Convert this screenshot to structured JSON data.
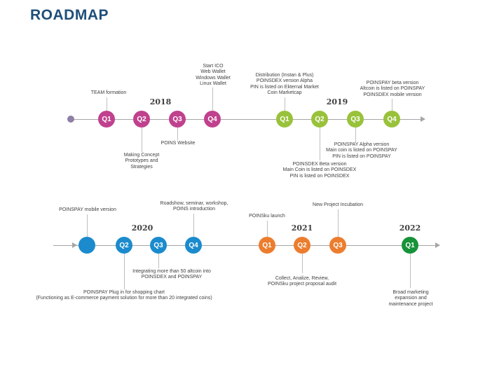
{
  "title": "ROADMAP",
  "colors": {
    "purple": "#c0418e",
    "green": "#99c23b",
    "blue": "#1b8bcd",
    "orange": "#ec7d2e",
    "dark_green": "#169239",
    "axis": "#a6a6a6",
    "title": "#1f4e79"
  },
  "years": [
    "2018",
    "2019",
    "2020",
    "2021",
    "2022"
  ],
  "row1": {
    "nodes": [
      "Q1",
      "Q2",
      "Q3",
      "Q4",
      "Q1",
      "Q2",
      "Q3",
      "Q4"
    ],
    "annotations": [
      {
        "lines": [
          "TEAM formation"
        ]
      },
      {
        "lines": [
          "Making Concept",
          "Prototypes and",
          "Strategies"
        ]
      },
      {
        "lines": [
          "POINS Website"
        ]
      },
      {
        "lines": [
          "Start ICO",
          "Web Wallet",
          "Windows Wallet",
          "Linux Wallet"
        ]
      },
      {
        "lines": [
          "Distribution (Instan & Plus)",
          "POINSDEX version Alpha",
          "PIN is listed on Ekternal Market",
          "Coin Marketcap"
        ]
      },
      {
        "lines": [
          "POINSDEX Beta version",
          "Main Coin is listed on POINSDEX",
          "PIN is listed on POINSDEX"
        ]
      },
      {
        "lines": [
          "POINSPAY Alpha version",
          "Main coin is listed on POINSPAY",
          "PIN is listed on POINSPAY"
        ]
      },
      {
        "lines": [
          "POINSPAY beta version",
          "Altcoin is listed on POINSPAY",
          "POINSDEX mobile version"
        ]
      }
    ]
  },
  "row2": {
    "nodes": [
      "",
      "Q2",
      "Q3",
      "Q4",
      "Q1",
      "Q2",
      "Q3",
      "Q1"
    ],
    "annotations": [
      {
        "lines": [
          "POINSPAY mobile version"
        ]
      },
      {
        "lines": [
          "POINSPAY Plug in for shopping chart",
          "(Functioning as E-commerce payment solution for more than 20 integrated coins)"
        ]
      },
      {
        "lines": [
          "Integrating more than 50 altcoin into",
          "POINSDEX and POINSPAY"
        ]
      },
      {
        "lines": [
          "Roadshow, seminar, workshop,",
          "POINS introduction"
        ]
      },
      {
        "lines": [
          "POINSku launch"
        ]
      },
      {
        "lines": [
          "Collect, Analize, Review,",
          "POINSku project proposal audit"
        ]
      },
      {
        "lines": [
          "New Project Incubation"
        ]
      },
      {
        "lines": [
          "Broad marketing",
          "expansion and",
          "maintenance project"
        ]
      }
    ]
  }
}
